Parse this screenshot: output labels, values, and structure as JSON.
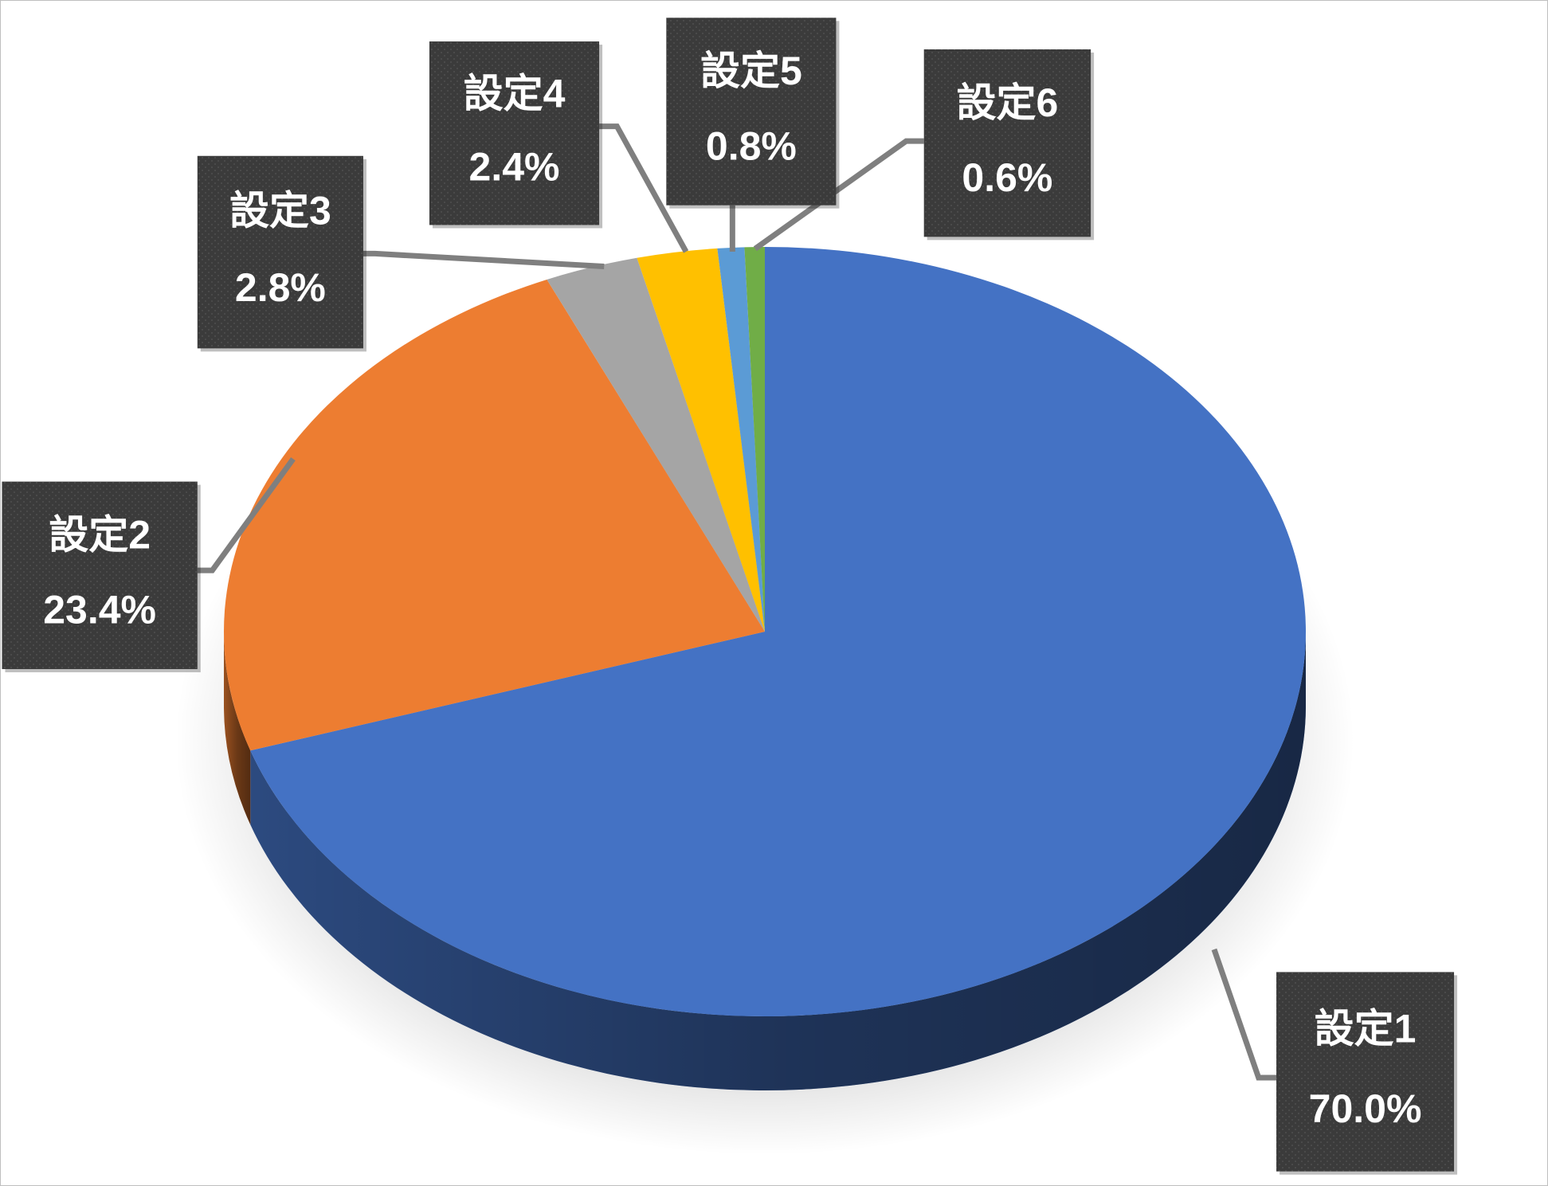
{
  "chart_data": {
    "type": "pie3d",
    "categories": [
      "設定1",
      "設定2",
      "設定3",
      "設定4",
      "設定5",
      "設定6"
    ],
    "values": [
      70.0,
      23.4,
      2.8,
      2.4,
      0.8,
      0.6
    ],
    "value_labels": [
      "70.0%",
      "23.4%",
      "2.8%",
      "2.4%",
      "0.8%",
      "0.6%"
    ],
    "colors": [
      "#4472c4",
      "#ed7d31",
      "#a5a5a5",
      "#ffc000",
      "#5b9bd5",
      "#70ad47"
    ]
  }
}
